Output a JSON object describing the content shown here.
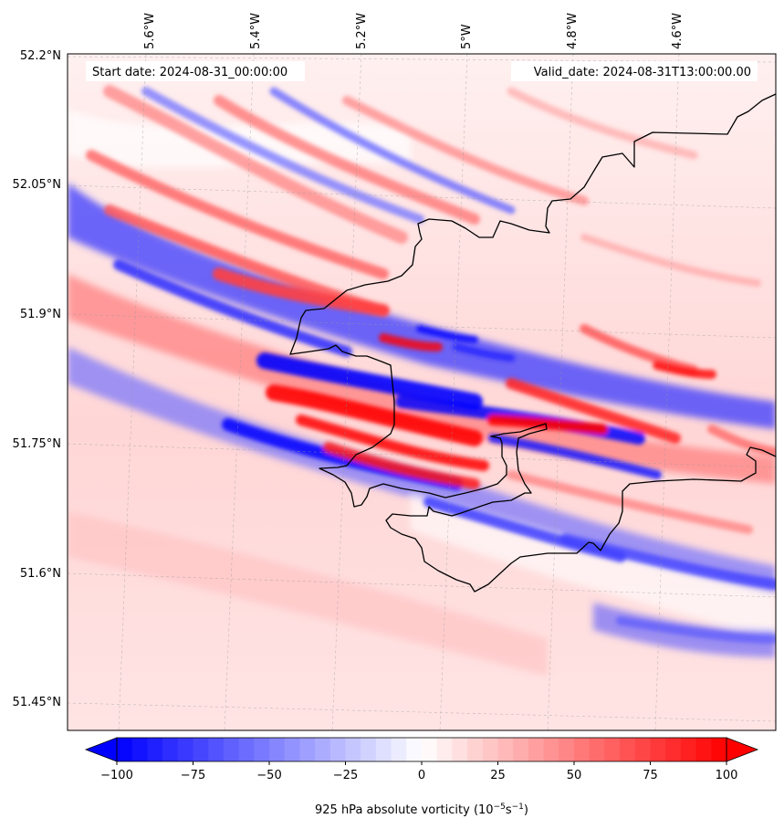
{
  "header": {
    "start_date": "Start date: 2024-08-31_00:00:00",
    "valid_date": "Valid_date: 2024-08-31T13:00:00.00"
  },
  "longitude_labels": [
    "5.6°W",
    "5.4°W",
    "5.2°W",
    "5°W",
    "4.8°W",
    "4.6°W"
  ],
  "latitude_labels": [
    "52.2°N",
    "52.05°N",
    "51.9°N",
    "51.75°N",
    "51.6°N",
    "51.45°N"
  ],
  "colorbar": {
    "tick_labels": [
      "−100",
      "−75",
      "−50",
      "−25",
      "0",
      "25",
      "50",
      "75",
      "100"
    ],
    "label_main": "925 hPa absolute vorticity (10",
    "label_exp1": "−5",
    "label_mid": "s",
    "label_exp2": "−1",
    "label_end": ")",
    "min": -100,
    "max": 100,
    "colors": {
      "negative": "#0000ff",
      "zero": "#ffffff",
      "positive": "#ff0000"
    }
  },
  "colors": {
    "coastline": "#000000",
    "gridline": "#888888",
    "background_field": "#ffe0e0"
  }
}
